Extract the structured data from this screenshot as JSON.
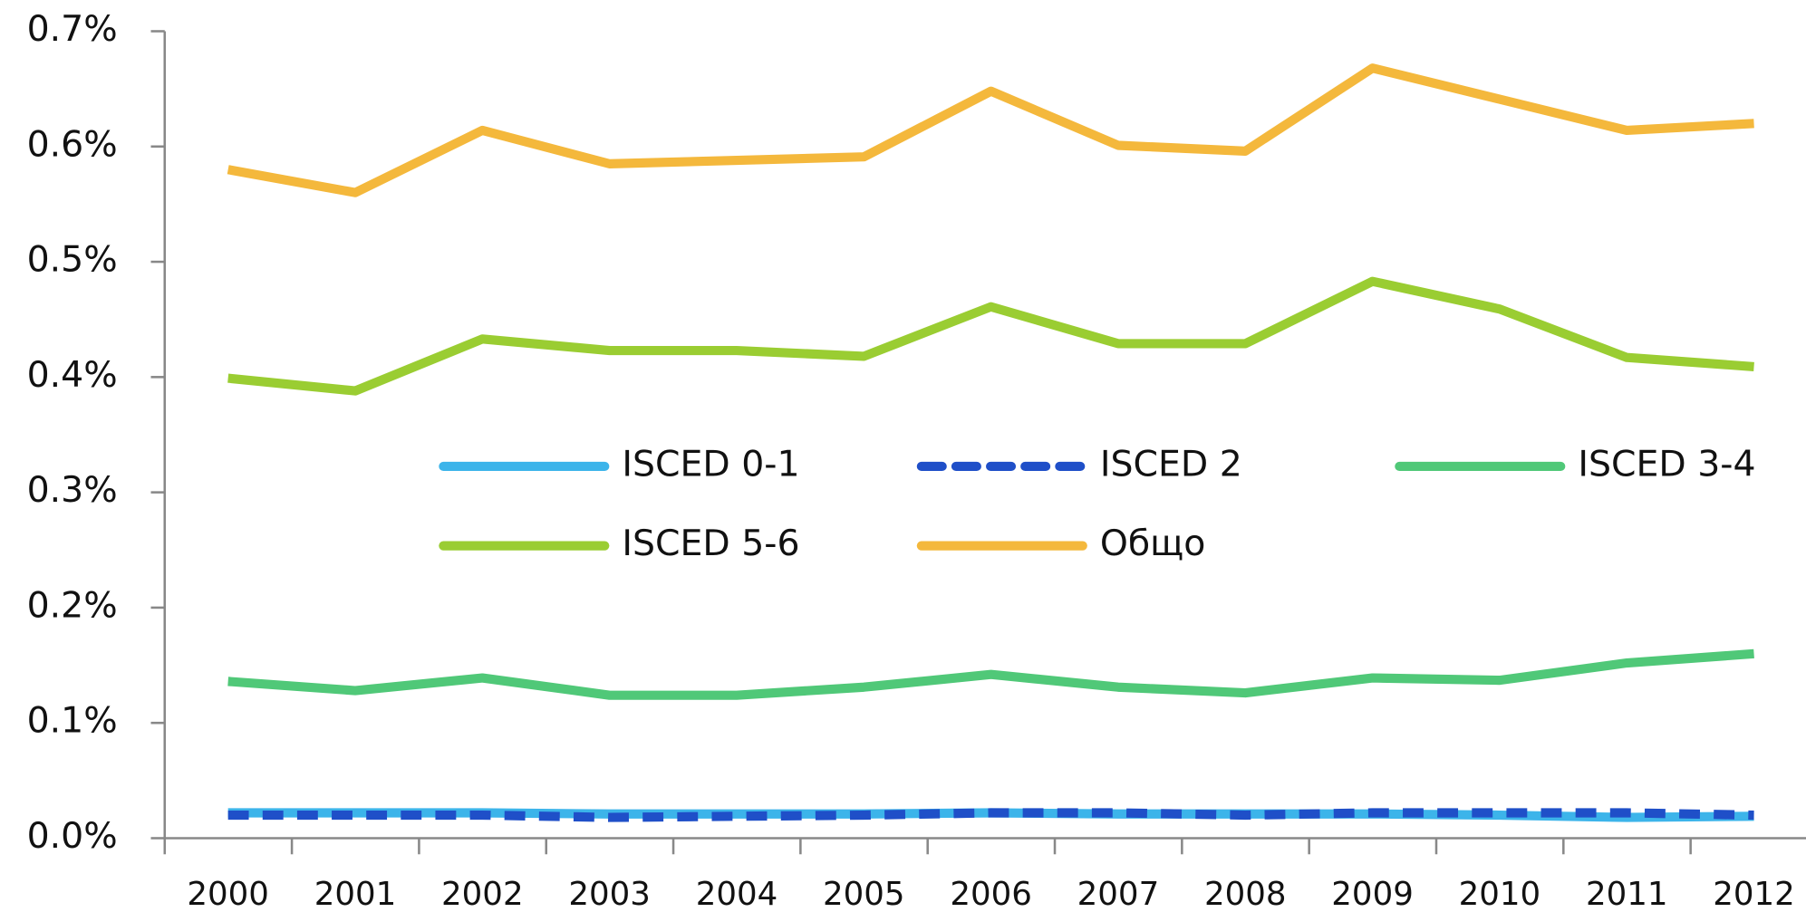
{
  "chart_data": {
    "type": "line",
    "categories": [
      "2000",
      "2001",
      "2002",
      "2003",
      "2004",
      "2005",
      "2006",
      "2007",
      "2008",
      "2009",
      "2010",
      "2011",
      "2012"
    ],
    "ylim": [
      0,
      0.7
    ],
    "yticks": [
      {
        "value": 0,
        "label": "0.0%"
      },
      {
        "value": 0.1,
        "label": "0.1%"
      },
      {
        "value": 0.2,
        "label": "0.2%"
      },
      {
        "value": 0.3,
        "label": "0.3%"
      },
      {
        "value": 0.4,
        "label": "0.4%"
      },
      {
        "value": 0.5,
        "label": "0.5%"
      },
      {
        "value": 0.6,
        "label": "0.6%"
      },
      {
        "value": 0.7,
        "label": "0.7%"
      }
    ],
    "series": [
      {
        "name": "ISCED 0-1",
        "color": "#3cb4ea",
        "values": [
          0.022,
          0.022,
          0.022,
          0.021,
          0.021,
          0.021,
          0.022,
          0.021,
          0.021,
          0.021,
          0.02,
          0.018,
          0.019
        ]
      },
      {
        "name": "ISCED 2",
        "color": "#1f4fc8",
        "dashed": true,
        "values": [
          0.02,
          0.02,
          0.02,
          0.018,
          0.019,
          0.02,
          0.022,
          0.022,
          0.02,
          0.022,
          0.022,
          0.022,
          0.02
        ]
      },
      {
        "name": "ISCED 3-4",
        "color": "#50c878",
        "values": [
          0.136,
          0.128,
          0.139,
          0.124,
          0.124,
          0.131,
          0.142,
          0.131,
          0.126,
          0.139,
          0.137,
          0.152,
          0.16
        ]
      },
      {
        "name": "ISCED 5-6",
        "color": "#9acd32",
        "values": [
          0.399,
          0.388,
          0.433,
          0.423,
          0.423,
          0.418,
          0.461,
          0.429,
          0.429,
          0.483,
          0.459,
          0.417,
          0.409
        ]
      },
      {
        "name": "Общо",
        "color": "#f4b83c",
        "values": [
          0.58,
          0.56,
          0.614,
          0.585,
          0.588,
          0.591,
          0.648,
          0.601,
          0.596,
          0.668,
          0.641,
          0.614,
          0.62
        ]
      }
    ]
  }
}
